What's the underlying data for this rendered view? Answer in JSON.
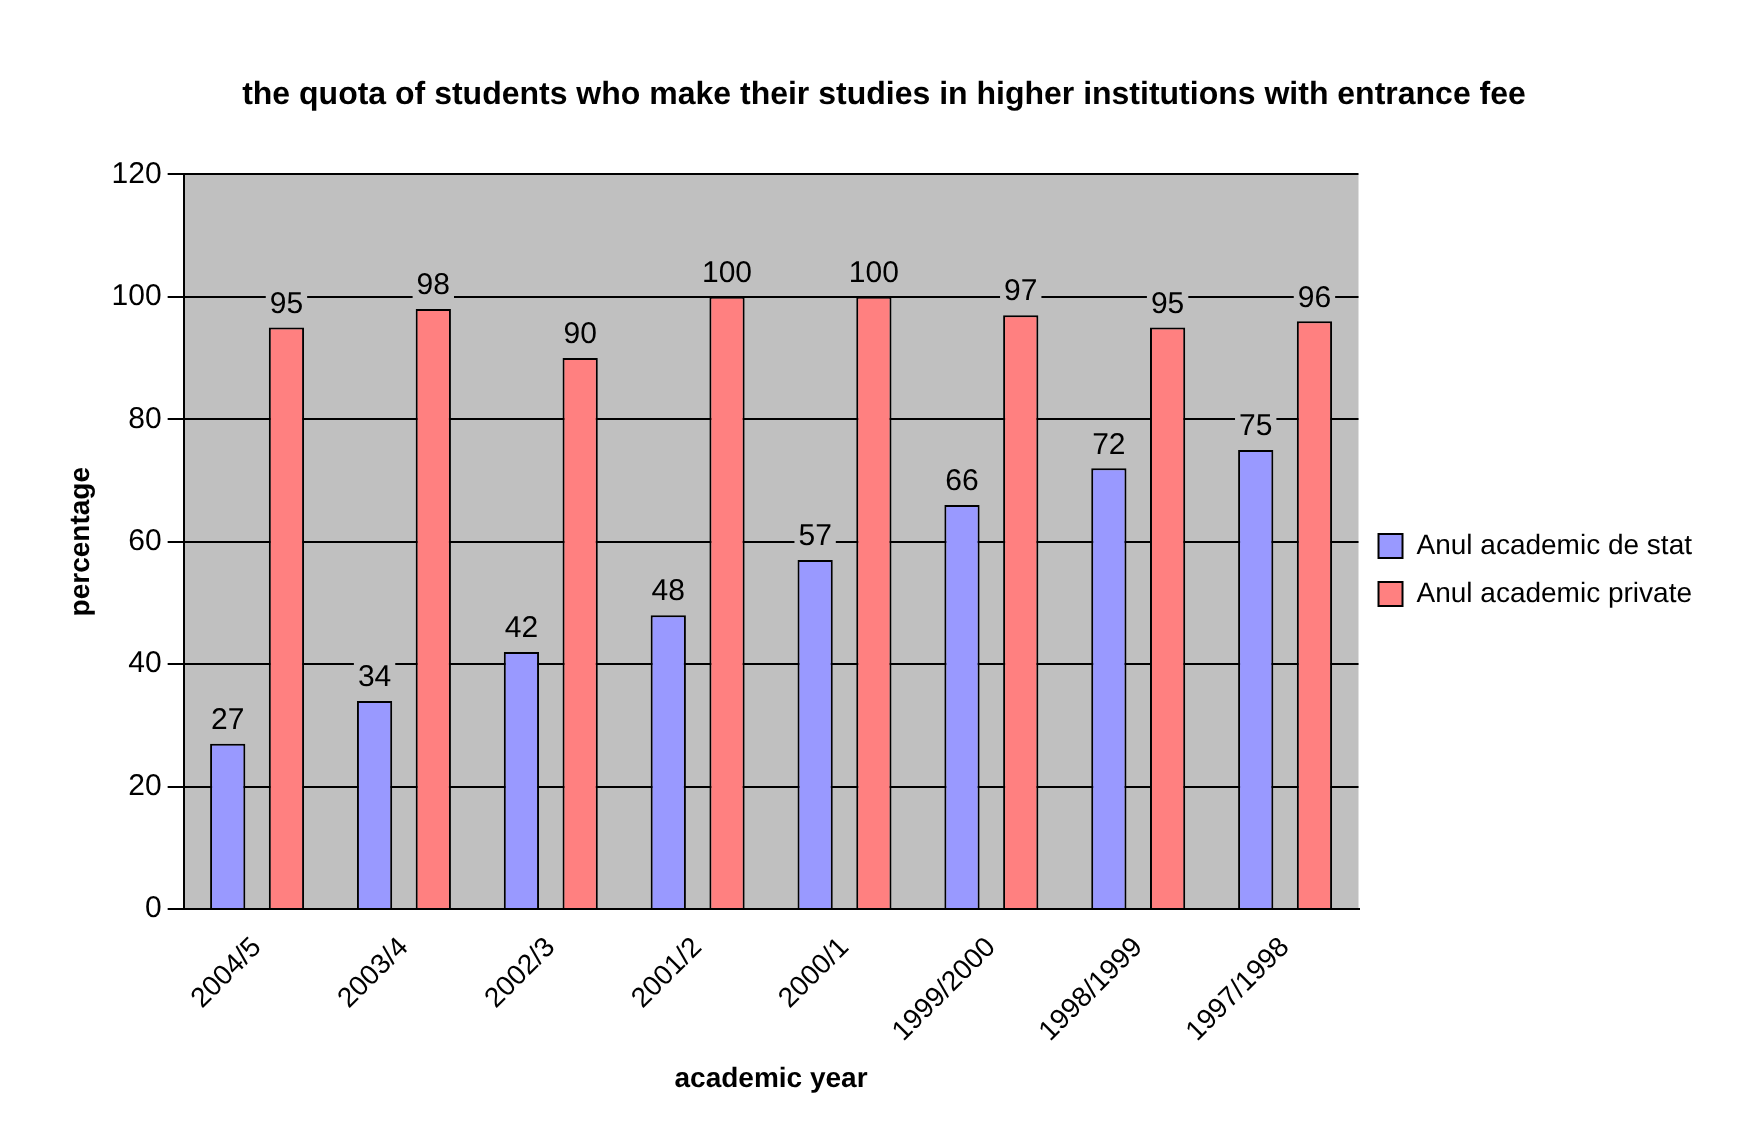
{
  "chart_data": {
    "type": "bar",
    "title": "the quota of students who make their studies in higher institutions with entrance fee",
    "xlabel": "academic year",
    "ylabel": "percentage",
    "categories": [
      "2004/5",
      "2003/4",
      "2002/3",
      "2001/2",
      "2000/1",
      "1999/2000",
      "1998/1999",
      "1997/1998"
    ],
    "series": [
      {
        "name": "Anul academic de stat",
        "color": "#9999ff",
        "values": [
          27,
          34,
          42,
          48,
          57,
          66,
          72,
          75
        ]
      },
      {
        "name": "Anul academic private",
        "color": "#ff8080",
        "values": [
          95,
          98,
          90,
          100,
          100,
          97,
          95,
          96
        ]
      }
    ],
    "ylim": [
      0,
      120
    ],
    "yticks": [
      0,
      20,
      40,
      60,
      80,
      100,
      120
    ],
    "grid": "y",
    "legend": "right",
    "data_labels": true
  }
}
